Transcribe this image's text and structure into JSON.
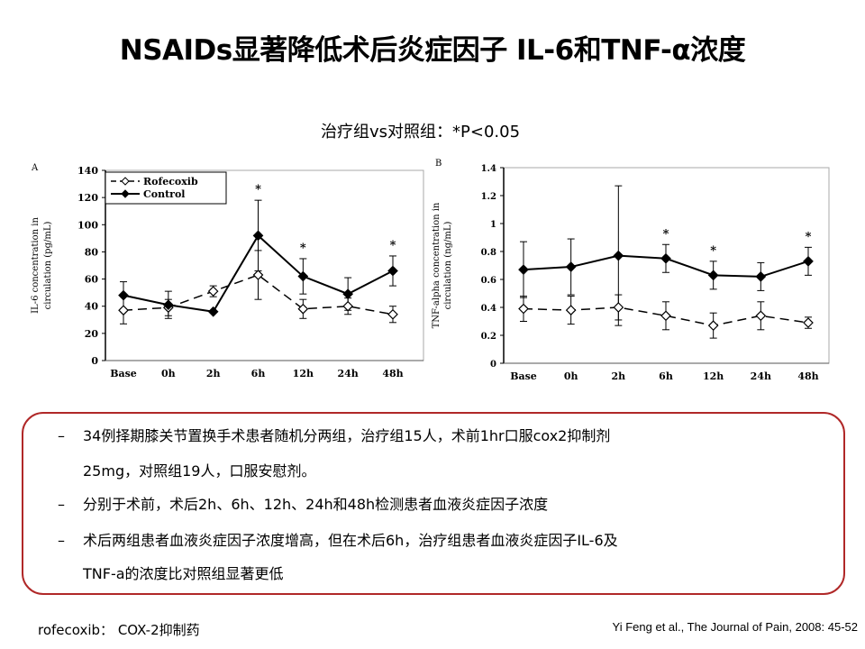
{
  "title": "NSAIDs显著降低术后炎症因子 IL-6和TNF-α浓度",
  "note": "治疗组vs对照组：*P<0.05",
  "chart_data": [
    {
      "type": "line",
      "panel": "A",
      "ylabel": "IL-6 concentration in circulation (pg/mL)",
      "categories": [
        "Base",
        "0h",
        "2h",
        "6h",
        "12h",
        "24h",
        "48h"
      ],
      "ylim": [
        0,
        140
      ],
      "yticks": [
        "0",
        "20",
        "40",
        "60",
        "80",
        "100",
        "120",
        "140"
      ],
      "legend_position": "top-left",
      "series": [
        {
          "name": "Rofecoxib",
          "values": [
            37,
            39,
            51,
            63,
            38,
            40,
            34
          ],
          "err": [
            10,
            6,
            4,
            18,
            7,
            6,
            6
          ],
          "style": "dashed",
          "marker": "open-diamond"
        },
        {
          "name": "Control",
          "values": [
            48,
            41,
            36,
            92,
            62,
            49,
            66
          ],
          "err": [
            10,
            10,
            0,
            26,
            13,
            12,
            11
          ],
          "style": "solid",
          "marker": "filled-diamond"
        }
      ],
      "significance": [
        "",
        "",
        "",
        "*",
        "*",
        "",
        "*"
      ]
    },
    {
      "type": "line",
      "panel": "B",
      "ylabel": "TNF-alpha concentration in circulation (ng/mL)",
      "categories": [
        "Base",
        "0h",
        "2h",
        "6h",
        "12h",
        "24h",
        "48h"
      ],
      "ylim": [
        0,
        1.4
      ],
      "yticks": [
        "0",
        "0.2",
        "0.4",
        "0.6",
        "0.8",
        "1",
        "1.2",
        "1.4"
      ],
      "series": [
        {
          "name": "Rofecoxib",
          "values": [
            0.39,
            0.38,
            0.4,
            0.34,
            0.27,
            0.34,
            0.29
          ],
          "err": [
            0.09,
            0.1,
            0.09,
            0.1,
            0.09,
            0.1,
            0.04
          ],
          "style": "dashed",
          "marker": "open-diamond"
        },
        {
          "name": "Control",
          "values": [
            0.67,
            0.69,
            0.77,
            0.75,
            0.63,
            0.62,
            0.73
          ],
          "err": [
            0.2,
            0.2,
            0.5,
            0.1,
            0.1,
            0.1,
            0.1
          ],
          "style": "solid",
          "marker": "filled-diamond"
        }
      ],
      "significance": [
        "",
        "",
        "",
        "*",
        "*",
        "",
        "*"
      ]
    }
  ],
  "bullets": [
    {
      "dash": "–",
      "text": "34例择期膝关节置换手术患者随机分两组，治疗组15人，术前1hr口服cox2抑制剂"
    },
    {
      "dash": "",
      "text": "25mg，对照组19人，口服安慰剂。"
    },
    {
      "dash": "–",
      "text": "分别于术前，术后2h、6h、12h、24h和48h检测患者血液炎症因子浓度"
    },
    {
      "dash": "–",
      "text": "术后两组患者血液炎症因子浓度增高，但在术后6h，治疗组患者血液炎症因子IL-6及"
    },
    {
      "dash": "",
      "text": "TNF-a的浓度比对照组显著更低"
    }
  ],
  "footer_left": "rofecoxib： COX-2抑制药",
  "footer_right": "Yi Feng et al., The Journal of Pain, 2008: 45-52"
}
